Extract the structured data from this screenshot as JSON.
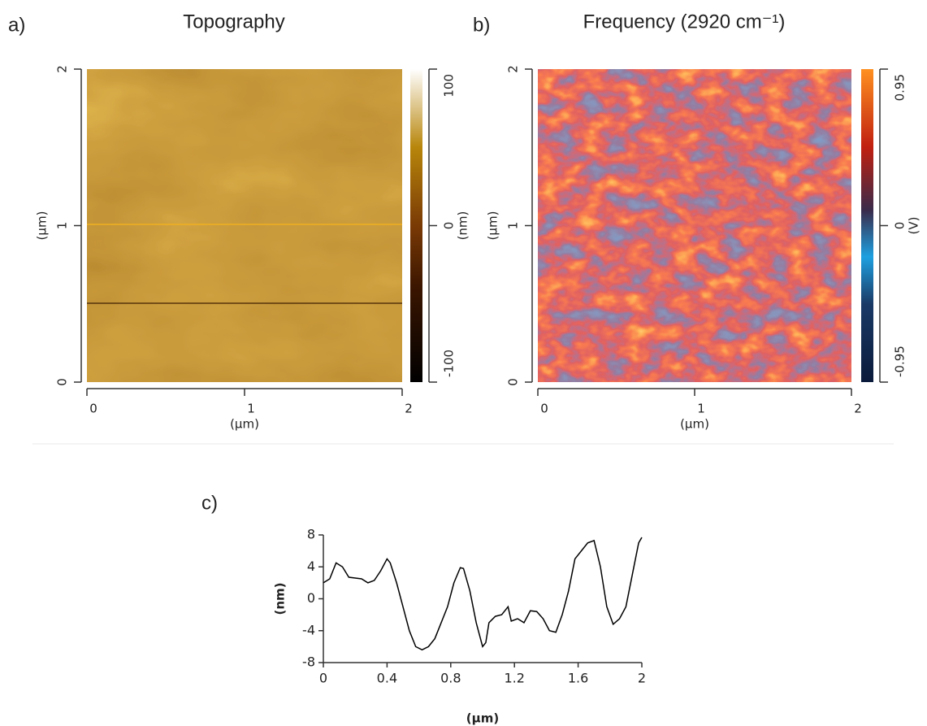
{
  "chart_data": [
    {
      "type": "image",
      "label": "a)",
      "title": "Topography",
      "xlabel": "(µm)",
      "ylabel": "(µm)",
      "xlim": [
        0,
        2
      ],
      "xticks": [
        0,
        1,
        2
      ],
      "ylim": [
        0,
        2
      ],
      "yticks": [
        0,
        1,
        2
      ],
      "colorbar": {
        "label": "(nm)",
        "lim": [
          -100,
          100
        ],
        "ticks": [
          -100,
          0,
          100
        ]
      }
    },
    {
      "type": "image",
      "label": "b)",
      "title": "Frequency (2920 cm⁻¹)",
      "xlabel": "(µm)",
      "ylabel": "(µm)",
      "xlim": [
        0,
        2
      ],
      "xticks": [
        0,
        1,
        2
      ],
      "ylim": [
        0,
        2
      ],
      "yticks": [
        0,
        1,
        2
      ],
      "colorbar": {
        "label": "(V)",
        "lim": [
          -0.95,
          0.95
        ],
        "ticks": [
          -0.95,
          0,
          0.95
        ]
      }
    },
    {
      "type": "line",
      "label": "c)",
      "xlabel": "(µm)",
      "ylabel": "(nm)",
      "color": "#000000",
      "xlim": [
        0,
        2
      ],
      "xticks": [
        0,
        0.4,
        0.8,
        1.2,
        1.6,
        2
      ],
      "ylim": [
        -8,
        8
      ],
      "yticks": [
        -8,
        -4,
        0,
        4,
        8
      ],
      "x": [
        0,
        0.04,
        0.08,
        0.12,
        0.16,
        0.2,
        0.24,
        0.28,
        0.32,
        0.36,
        0.4,
        0.42,
        0.46,
        0.5,
        0.54,
        0.58,
        0.62,
        0.66,
        0.7,
        0.74,
        0.78,
        0.82,
        0.86,
        0.88,
        0.92,
        0.96,
        1.0,
        1.02,
        1.04,
        1.08,
        1.12,
        1.16,
        1.18,
        1.22,
        1.26,
        1.3,
        1.34,
        1.38,
        1.42,
        1.46,
        1.5,
        1.54,
        1.58,
        1.62,
        1.66,
        1.7,
        1.74,
        1.78,
        1.82,
        1.86,
        1.9,
        1.94,
        1.98,
        2.0
      ],
      "values": [
        2,
        2.5,
        4.5,
        4,
        2.7,
        2.6,
        2.5,
        2,
        2.3,
        3.5,
        5,
        4.5,
        2,
        -1,
        -4,
        -6,
        -6.4,
        -6,
        -5,
        -3,
        -1,
        2,
        3.9,
        3.8,
        1,
        -3,
        -6,
        -5.5,
        -3,
        -2.2,
        -2,
        -1,
        -2.8,
        -2.5,
        -3,
        -1.5,
        -1.6,
        -2.5,
        -4,
        -4.2,
        -2,
        1,
        5,
        6,
        7,
        7.3,
        4,
        -1,
        -3.2,
        -2.5,
        -1,
        3,
        7,
        7.7
      ]
    }
  ]
}
